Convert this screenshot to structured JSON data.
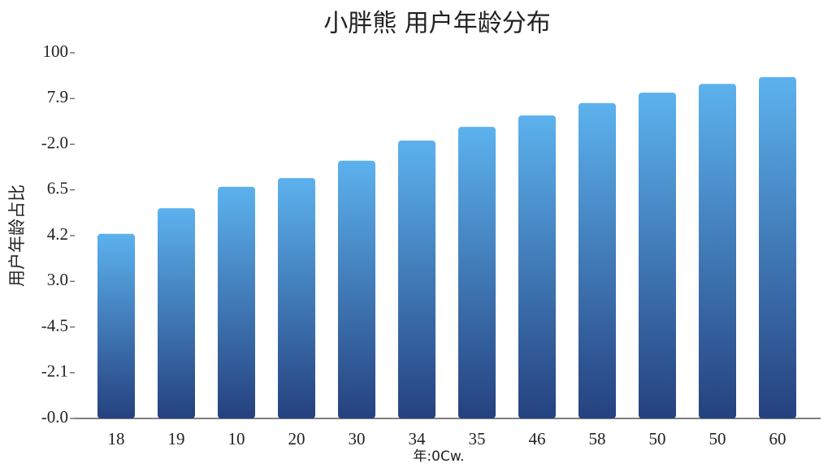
{
  "chart_data": {
    "type": "bar",
    "title": "小胖熊  用户年龄分布",
    "x_label": "年:0Cw.",
    "y_label": "用户年龄占比",
    "categories": [
      "18",
      "19",
      "10",
      "20",
      "30",
      "34",
      "35",
      "46",
      "58",
      "50",
      "50",
      "60"
    ],
    "values": [
      4.04,
      4.6,
      5.07,
      5.26,
      5.64,
      6.08,
      6.38,
      6.63,
      6.9,
      7.13,
      7.32,
      7.47
    ],
    "color": "#3f7fc8",
    "ylim": [
      0,
      8
    ],
    "yticks": [
      {
        "value": 0,
        "label": "-0.0"
      },
      {
        "value": 1,
        "label": "-2.1"
      },
      {
        "value": 2,
        "label": "-4.5"
      },
      {
        "value": 3,
        "label": "3.0"
      },
      {
        "value": 4,
        "label": "4.2"
      },
      {
        "value": 5,
        "label": "6.5"
      },
      {
        "value": 6,
        "label": "-2.0"
      },
      {
        "value": 7,
        "label": "7.9"
      },
      {
        "value": 8,
        "label": "100"
      }
    ],
    "grid": false
  }
}
